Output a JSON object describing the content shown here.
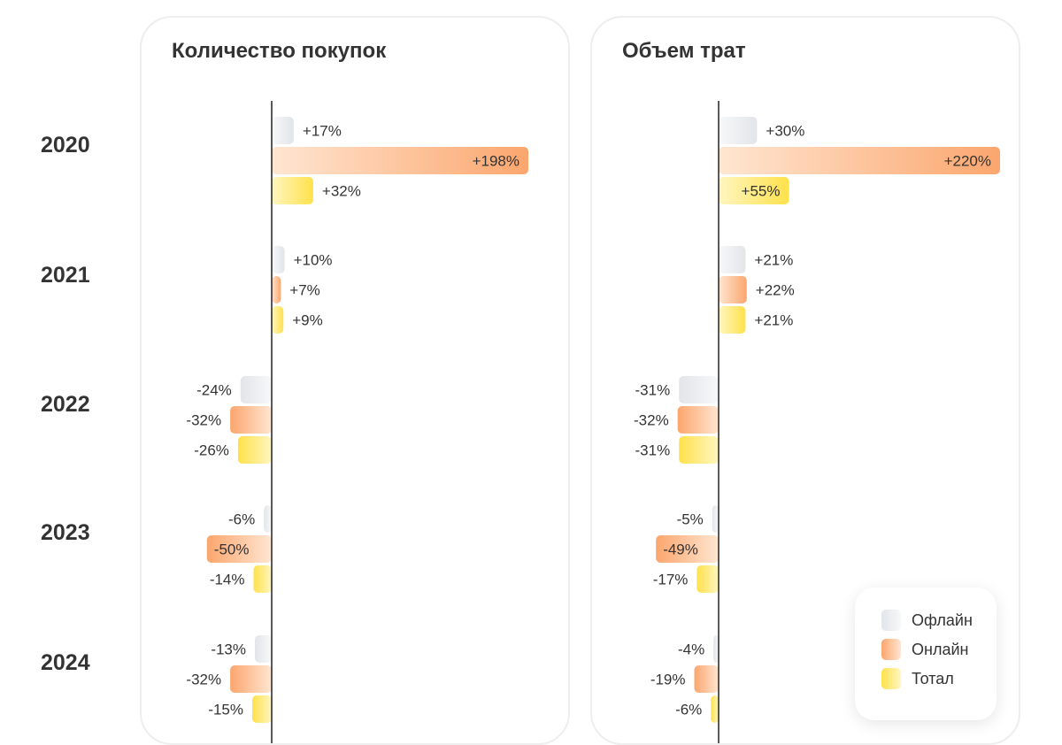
{
  "colors": {
    "offline": [
      "#e2e5e9",
      "#f7f8f9"
    ],
    "online": [
      "#fba66e",
      "#ffe6d1"
    ],
    "total": [
      "#ffe14b",
      "#fff6c0"
    ],
    "axis": "#222222",
    "panel_border": "#eeeeee",
    "text": "#333333"
  },
  "legend": [
    {
      "key": "offline",
      "label": "Офлайн"
    },
    {
      "key": "online",
      "label": "Онлайн"
    },
    {
      "key": "total",
      "label": "Тотал"
    }
  ],
  "chart_data": [
    {
      "type": "bar",
      "orientation": "horizontal",
      "title": "Количество покупок",
      "categories": [
        "2020",
        "2021",
        "2022",
        "2023",
        "2024"
      ],
      "unit": "%",
      "xlim": [
        -50,
        198
      ],
      "series": [
        {
          "name": "Офлайн",
          "key": "offline",
          "values": [
            17,
            10,
            -24,
            -6,
            -13
          ]
        },
        {
          "name": "Онлайн",
          "key": "online",
          "values": [
            198,
            7,
            -32,
            -50,
            -32
          ]
        },
        {
          "name": "Тотал",
          "key": "total",
          "values": [
            32,
            9,
            -26,
            -14,
            -15
          ]
        }
      ]
    },
    {
      "type": "bar",
      "orientation": "horizontal",
      "title": "Объем трат",
      "categories": [
        "2020",
        "2021",
        "2022",
        "2023",
        "2024"
      ],
      "unit": "%",
      "xlim": [
        -49,
        220
      ],
      "series": [
        {
          "name": "Офлайн",
          "key": "offline",
          "values": [
            30,
            21,
            -31,
            -5,
            -4
          ]
        },
        {
          "name": "Онлайн",
          "key": "online",
          "values": [
            220,
            22,
            -32,
            -49,
            -19
          ]
        },
        {
          "name": "Тотал",
          "key": "total",
          "values": [
            55,
            21,
            -31,
            -17,
            -6
          ]
        }
      ]
    }
  ]
}
